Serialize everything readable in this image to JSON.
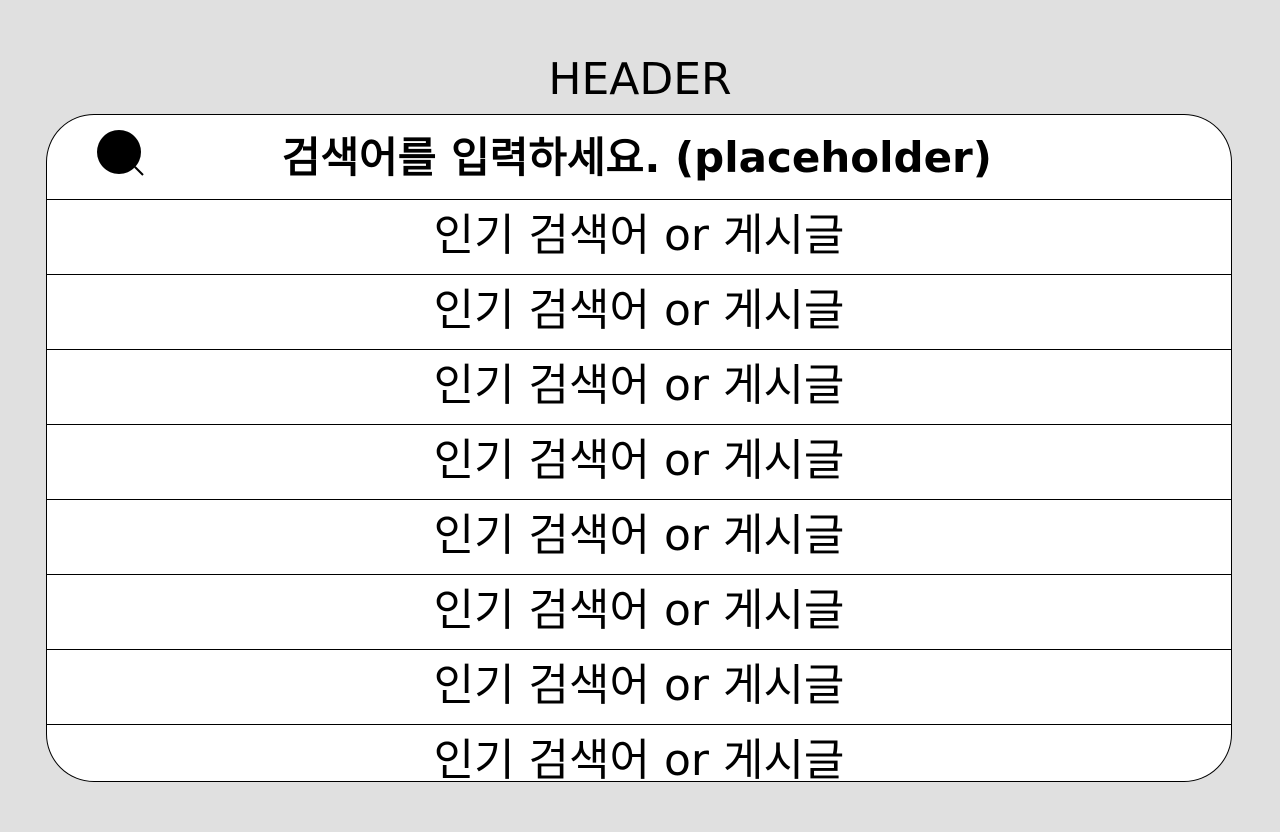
{
  "header": {
    "title": "HEADER"
  },
  "search": {
    "placeholder": "검색어를 입력하세요. (placeholder)",
    "icon": "search-icon"
  },
  "list": {
    "items": [
      {
        "label": "인기 검색어 or 게시글"
      },
      {
        "label": "인기 검색어 or 게시글"
      },
      {
        "label": "인기 검색어 or 게시글"
      },
      {
        "label": "인기 검색어 or 게시글"
      },
      {
        "label": "인기 검색어 or 게시글"
      },
      {
        "label": "인기 검색어 or 게시글"
      },
      {
        "label": "인기 검색어 or 게시글"
      },
      {
        "label": "인기 검색어 or 게시글"
      }
    ]
  },
  "colors": {
    "background": "#e0e0e0",
    "panel": "#ffffff",
    "text": "#000000"
  }
}
